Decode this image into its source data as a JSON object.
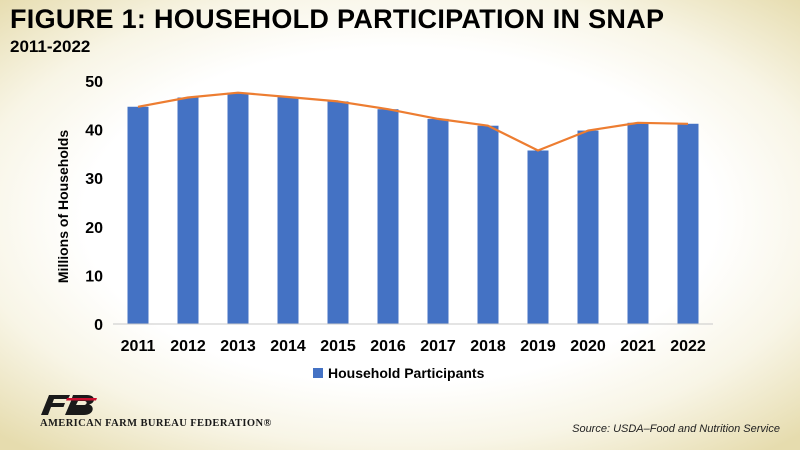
{
  "header": {
    "title": "FIGURE  1: HOUSEHOLD PARTICIPATION IN SNAP",
    "subtitle": "2011-2022"
  },
  "footer": {
    "org_name": "AMERICAN FARM BUREAU FEDERATION®",
    "source": "Source: USDA–Food and Nutrition Service"
  },
  "colors": {
    "bar": "#4472c4",
    "line": "#ed7d31"
  },
  "chart_data": {
    "type": "bar",
    "title": "FIGURE  1: HOUSEHOLD PARTICIPATION IN SNAP",
    "subtitle": "2011-2022",
    "categories": [
      "2011",
      "2012",
      "2013",
      "2014",
      "2015",
      "2016",
      "2017",
      "2018",
      "2019",
      "2020",
      "2021",
      "2022"
    ],
    "series": [
      {
        "name": "Household Participants",
        "values": [
          44.7,
          46.6,
          47.6,
          46.7,
          45.8,
          44.2,
          42.2,
          40.8,
          35.7,
          39.8,
          41.4,
          41.2
        ]
      }
    ],
    "overlay_line": "trend line through bar values",
    "xlabel": "",
    "ylabel": "Millions of Households",
    "ylim": [
      0,
      50
    ],
    "yticks": [
      0,
      10,
      20,
      30,
      40,
      50
    ],
    "grid": false,
    "legend_position": "bottom"
  }
}
